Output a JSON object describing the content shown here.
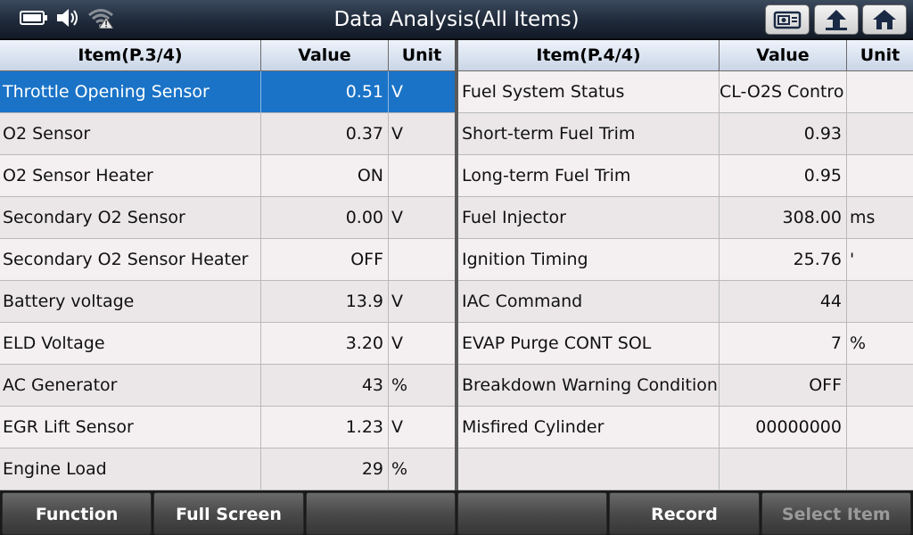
{
  "window": {
    "title": "Data Analysis(All Items)"
  },
  "status_icons": [
    "battery-icon",
    "speaker-icon",
    "wifi-off-icon"
  ],
  "toolbar_icons": [
    "snapshot-icon",
    "back-icon",
    "home-icon"
  ],
  "left_table": {
    "headers": {
      "item": "Item(P.3/4)",
      "value": "Value",
      "unit": "Unit"
    },
    "rows": [
      {
        "item": "Throttle Opening Sensor",
        "value": "0.51",
        "unit": "V"
      },
      {
        "item": "O2 Sensor",
        "value": "0.37",
        "unit": "V"
      },
      {
        "item": "O2 Sensor Heater",
        "value": "ON",
        "unit": ""
      },
      {
        "item": "Secondary O2 Sensor",
        "value": "0.00",
        "unit": "V"
      },
      {
        "item": "Secondary O2 Sensor Heater",
        "value": "OFF",
        "unit": ""
      },
      {
        "item": "Battery voltage",
        "value": "13.9",
        "unit": "V"
      },
      {
        "item": "ELD Voltage",
        "value": "3.20",
        "unit": "V"
      },
      {
        "item": "AC Generator",
        "value": "43",
        "unit": "%"
      },
      {
        "item": "EGR Lift Sensor",
        "value": "1.23",
        "unit": "V"
      },
      {
        "item": "Engine Load",
        "value": "29",
        "unit": "%"
      }
    ]
  },
  "right_table": {
    "headers": {
      "item": "Item(P.4/4)",
      "value": "Value",
      "unit": "Unit"
    },
    "rows": [
      {
        "item": "Fuel System Status",
        "value": "CL-O2S Contro",
        "unit": ""
      },
      {
        "item": "Short-term Fuel Trim",
        "value": "0.93",
        "unit": ""
      },
      {
        "item": "Long-term Fuel Trim",
        "value": "0.95",
        "unit": ""
      },
      {
        "item": "Fuel Injector",
        "value": "308.00",
        "unit": "ms"
      },
      {
        "item": "Ignition Timing",
        "value": "25.76",
        "unit": "'"
      },
      {
        "item": "IAC Command",
        "value": "44",
        "unit": ""
      },
      {
        "item": "EVAP Purge CONT SOL",
        "value": "7",
        "unit": "%"
      },
      {
        "item": "Breakdown Warning Condition",
        "value": "OFF",
        "unit": ""
      },
      {
        "item": "Misfired Cylinder",
        "value": "00000000",
        "unit": ""
      },
      {
        "item": "",
        "value": "",
        "unit": ""
      }
    ]
  },
  "bottom_buttons": [
    {
      "label": "Function",
      "enabled": true
    },
    {
      "label": "Full Screen",
      "enabled": true
    },
    {
      "label": "",
      "enabled": true
    },
    {
      "label": "",
      "enabled": true
    },
    {
      "label": "Record",
      "enabled": true
    },
    {
      "label": "Select Item",
      "enabled": false
    }
  ],
  "colors": {
    "selected_row": "#1a73c7",
    "title_bar": "#1f2a3a",
    "header": "#c9d5e6"
  }
}
